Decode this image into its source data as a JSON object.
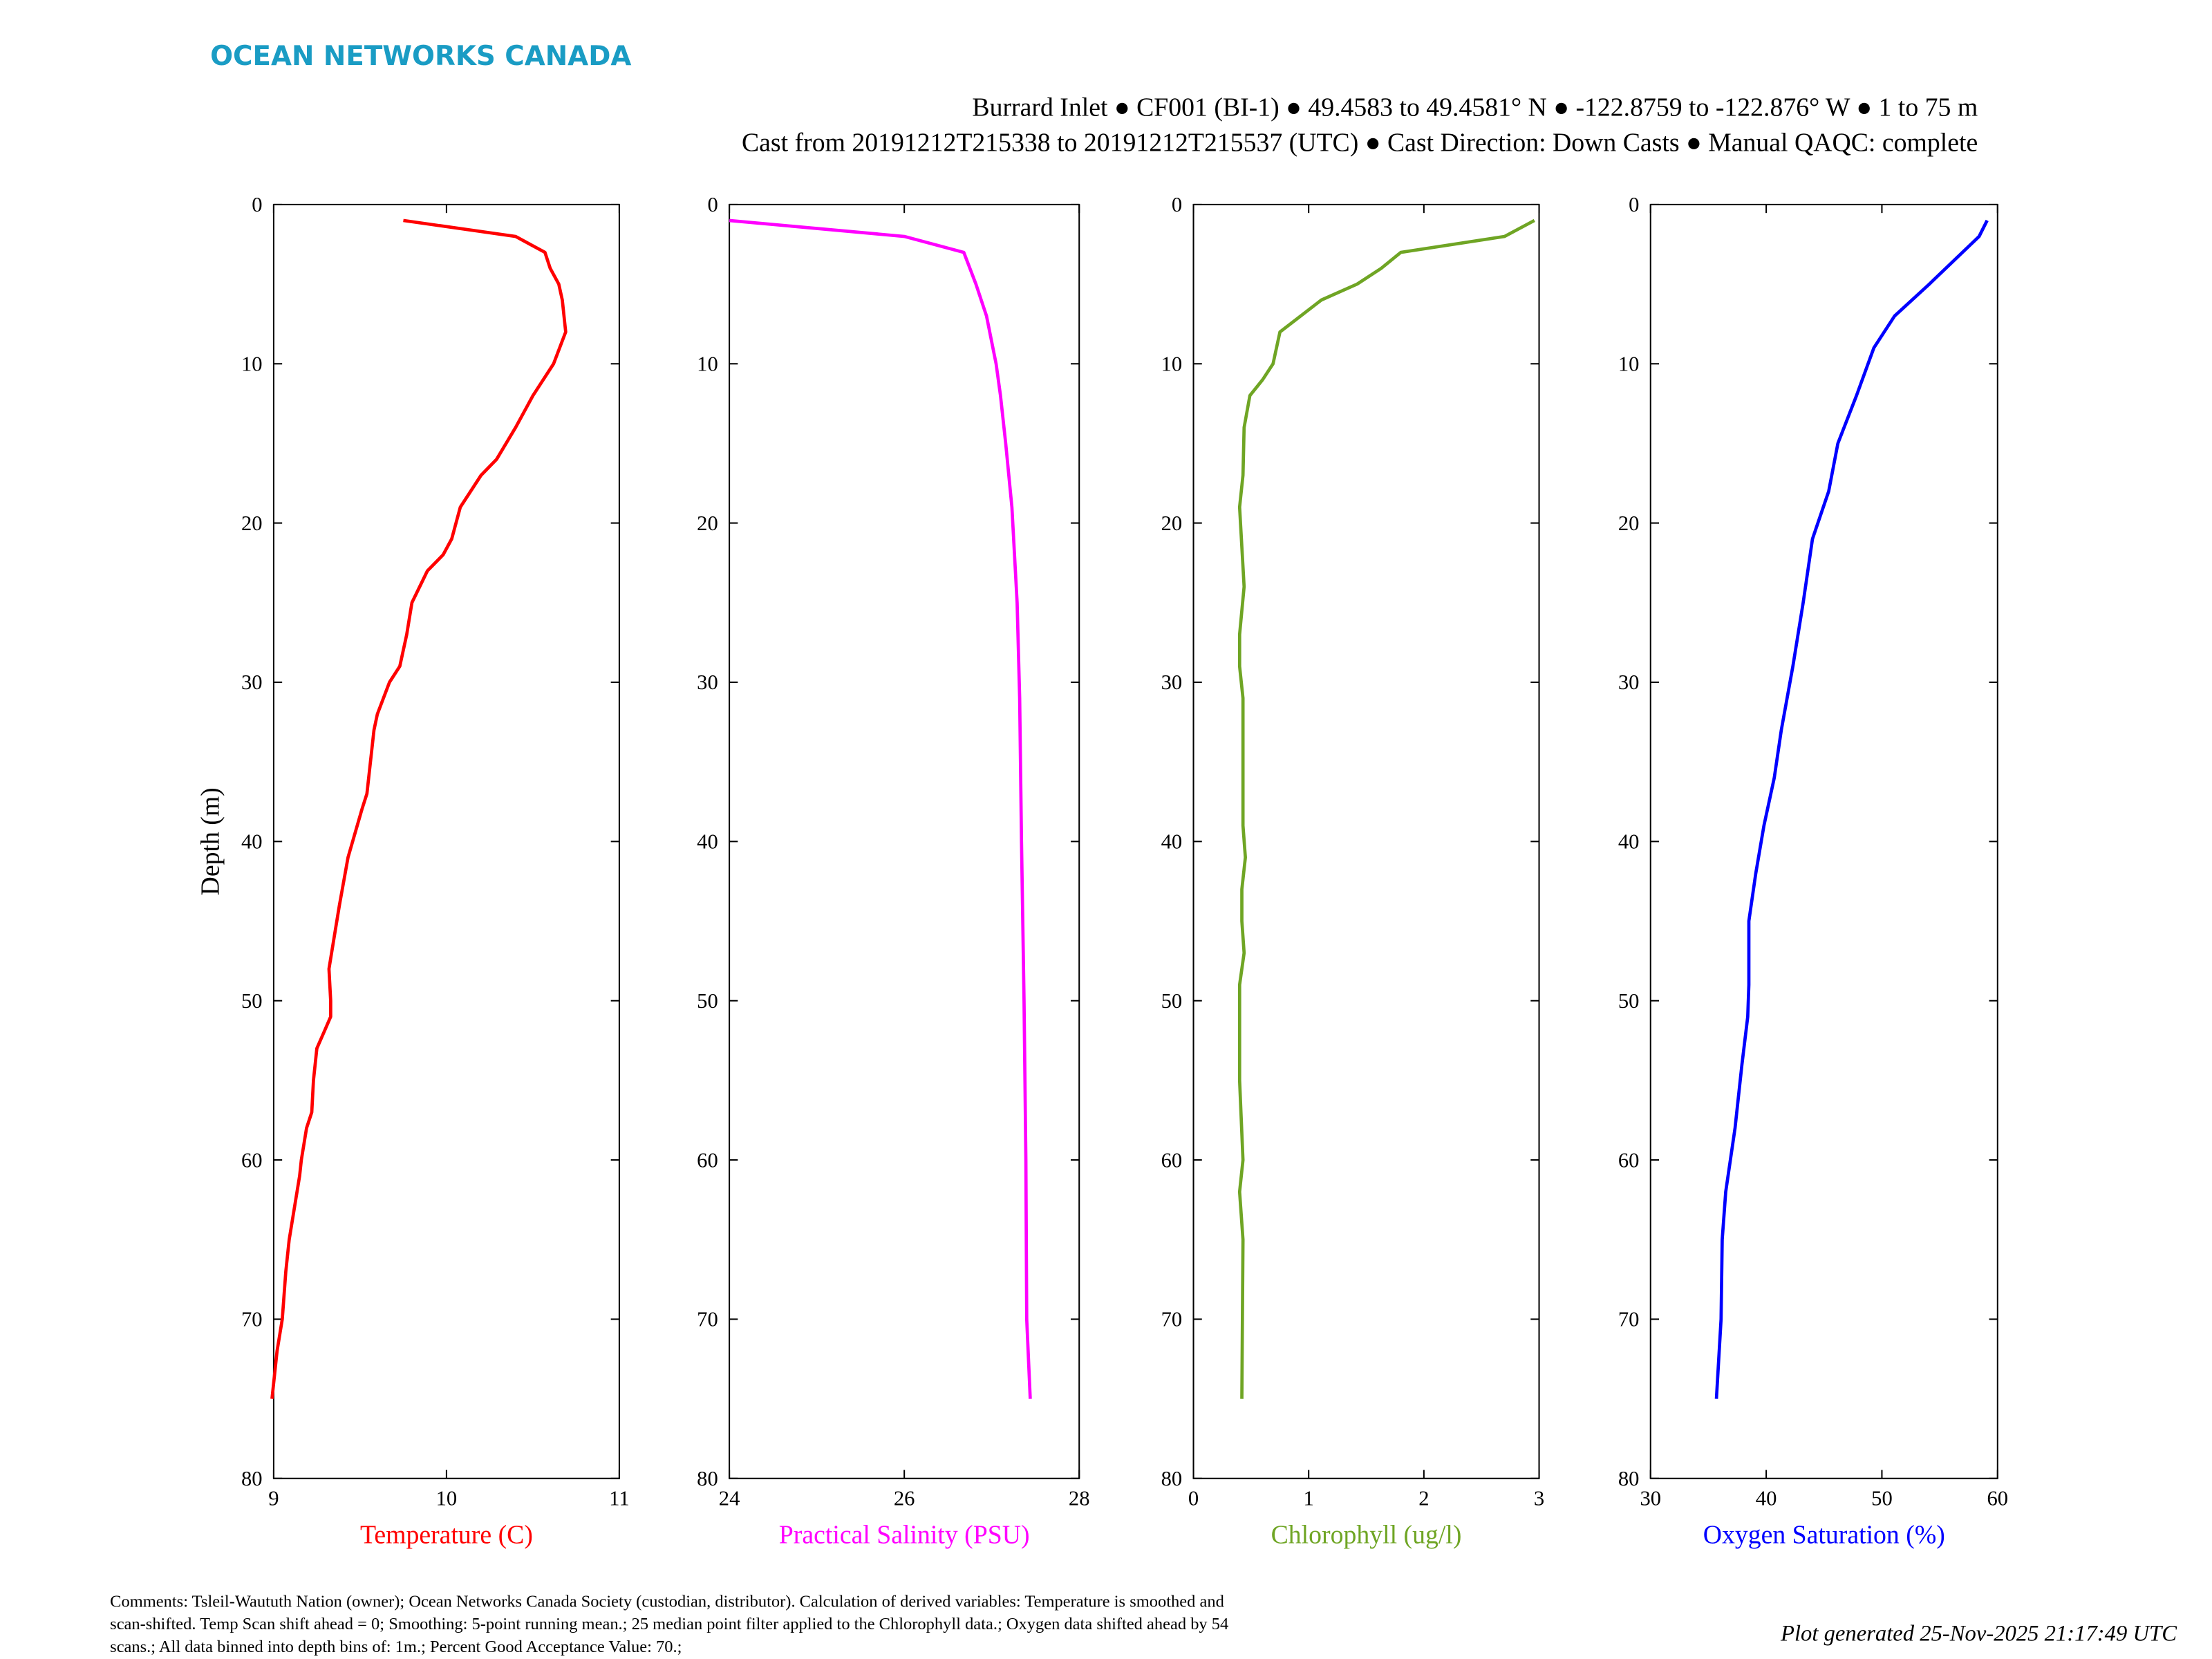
{
  "logo": {
    "text": "OCEAN NETWORKS CANADA",
    "color": "#1a9cc4"
  },
  "header": {
    "line1": "Burrard Inlet ● CF001 (BI-1) ● 49.4583 to 49.4581° N ● -122.8759 to -122.876° W ● 1 to 75 m",
    "line2": "Cast from 20191212T215338 to 20191212T215537 (UTC) ● Cast Direction: Down Casts ● Manual QAQC: complete"
  },
  "footer": {
    "comments": [
      "Comments: Tsleil-Waututh Nation (owner); Ocean Networks Canada Society (custodian, distributor). Calculation of derived variables: Temperature is smoothed and",
      "scan-shifted. Temp Scan shift ahead = 0; Smoothing: 5-point running mean.; 25 median point filter applied to the Chlorophyll data.; Oxygen data shifted ahead by 54",
      "scans.; All data binned into depth bins of: 1m.; Percent Good Acceptance Value: 70.;"
    ],
    "generated": "Plot generated 25-Nov-2025 21:17:49 UTC"
  },
  "chart_data": [
    {
      "type": "line",
      "xlabel": "Temperature (C)",
      "ylabel": "Depth (m)",
      "xlim": [
        9,
        11
      ],
      "ylim": [
        0,
        80
      ],
      "y_reversed": true,
      "xticks": [
        "9",
        "10",
        "11"
      ],
      "yticks": [
        "0",
        "10",
        "20",
        "30",
        "40",
        "50",
        "60",
        "70",
        "80"
      ],
      "color": "#ff0000",
      "grid": false,
      "depth": [
        1,
        2,
        3,
        4,
        5,
        6,
        8,
        10,
        12,
        14,
        16,
        17,
        19,
        21,
        22,
        23,
        25,
        27,
        29,
        30,
        32,
        33,
        37,
        38,
        41,
        44,
        46,
        48,
        50,
        51,
        52,
        53,
        55,
        57,
        58,
        60,
        61,
        63,
        65,
        67,
        70,
        72,
        75
      ],
      "values": [
        9.75,
        10.4,
        10.57,
        10.6,
        10.65,
        10.67,
        10.69,
        10.62,
        10.5,
        10.4,
        10.29,
        10.2,
        10.08,
        10.03,
        9.98,
        9.89,
        9.8,
        9.77,
        9.73,
        9.67,
        9.6,
        9.58,
        9.54,
        9.51,
        9.43,
        9.38,
        9.35,
        9.32,
        9.33,
        9.33,
        9.29,
        9.25,
        9.23,
        9.22,
        9.19,
        9.16,
        9.15,
        9.12,
        9.09,
        9.07,
        9.05,
        9.02,
        8.99
      ]
    },
    {
      "type": "line",
      "xlabel": "Practical Salinity (PSU)",
      "xlim": [
        24,
        28
      ],
      "ylim": [
        0,
        80
      ],
      "y_reversed": true,
      "xticks": [
        "24",
        "26",
        "28"
      ],
      "yticks": [
        "0",
        "10",
        "20",
        "30",
        "40",
        "50",
        "60",
        "70",
        "80"
      ],
      "color": "#ff00ff",
      "grid": false,
      "depth": [
        1,
        2,
        3,
        5,
        7,
        10,
        12,
        15,
        19,
        25,
        31,
        40,
        50,
        60,
        70,
        75
      ],
      "values": [
        24.0,
        26.0,
        26.68,
        26.82,
        26.94,
        27.05,
        27.1,
        27.16,
        27.23,
        27.29,
        27.32,
        27.34,
        27.37,
        27.39,
        27.4,
        27.44
      ]
    },
    {
      "type": "line",
      "xlabel": "Chlorophyll (ug/l)",
      "xlim": [
        0,
        3
      ],
      "ylim": [
        0,
        80
      ],
      "y_reversed": true,
      "xticks": [
        "0",
        "1",
        "2",
        "3"
      ],
      "yticks": [
        "0",
        "10",
        "20",
        "30",
        "40",
        "50",
        "60",
        "70",
        "80"
      ],
      "color": "#6fa524",
      "grid": false,
      "depth": [
        1,
        2,
        3,
        4,
        5,
        6,
        7,
        8,
        10,
        11,
        12,
        14,
        17,
        19,
        24,
        27,
        29,
        31,
        39,
        41,
        43,
        45,
        47,
        48,
        49,
        55,
        60,
        62,
        65,
        75
      ],
      "values": [
        2.96,
        2.7,
        1.8,
        1.63,
        1.42,
        1.11,
        0.93,
        0.75,
        0.69,
        0.6,
        0.49,
        0.44,
        0.43,
        0.4,
        0.44,
        0.4,
        0.4,
        0.43,
        0.43,
        0.45,
        0.42,
        0.42,
        0.44,
        0.42,
        0.4,
        0.4,
        0.43,
        0.4,
        0.43,
        0.42
      ]
    },
    {
      "type": "line",
      "xlabel": "Oxygen Saturation (%)",
      "xlim": [
        30,
        60
      ],
      "ylim": [
        0,
        80
      ],
      "y_reversed": true,
      "xticks": [
        "30",
        "40",
        "50",
        "60"
      ],
      "yticks": [
        "0",
        "10",
        "20",
        "30",
        "40",
        "50",
        "60",
        "70",
        "80"
      ],
      "color": "#0000ff",
      "grid": false,
      "depth": [
        1,
        2,
        5,
        7,
        9,
        12,
        15,
        18,
        21,
        25,
        29,
        33,
        36,
        39,
        42,
        45,
        49,
        51,
        54,
        58,
        62,
        65,
        70,
        75
      ],
      "values": [
        59.1,
        58.4,
        54.1,
        51.1,
        49.3,
        47.8,
        46.2,
        45.4,
        44.0,
        43.2,
        42.3,
        41.3,
        40.7,
        39.8,
        39.1,
        38.5,
        38.5,
        38.4,
        37.9,
        37.3,
        36.5,
        36.2,
        36.1,
        35.7
      ]
    }
  ]
}
